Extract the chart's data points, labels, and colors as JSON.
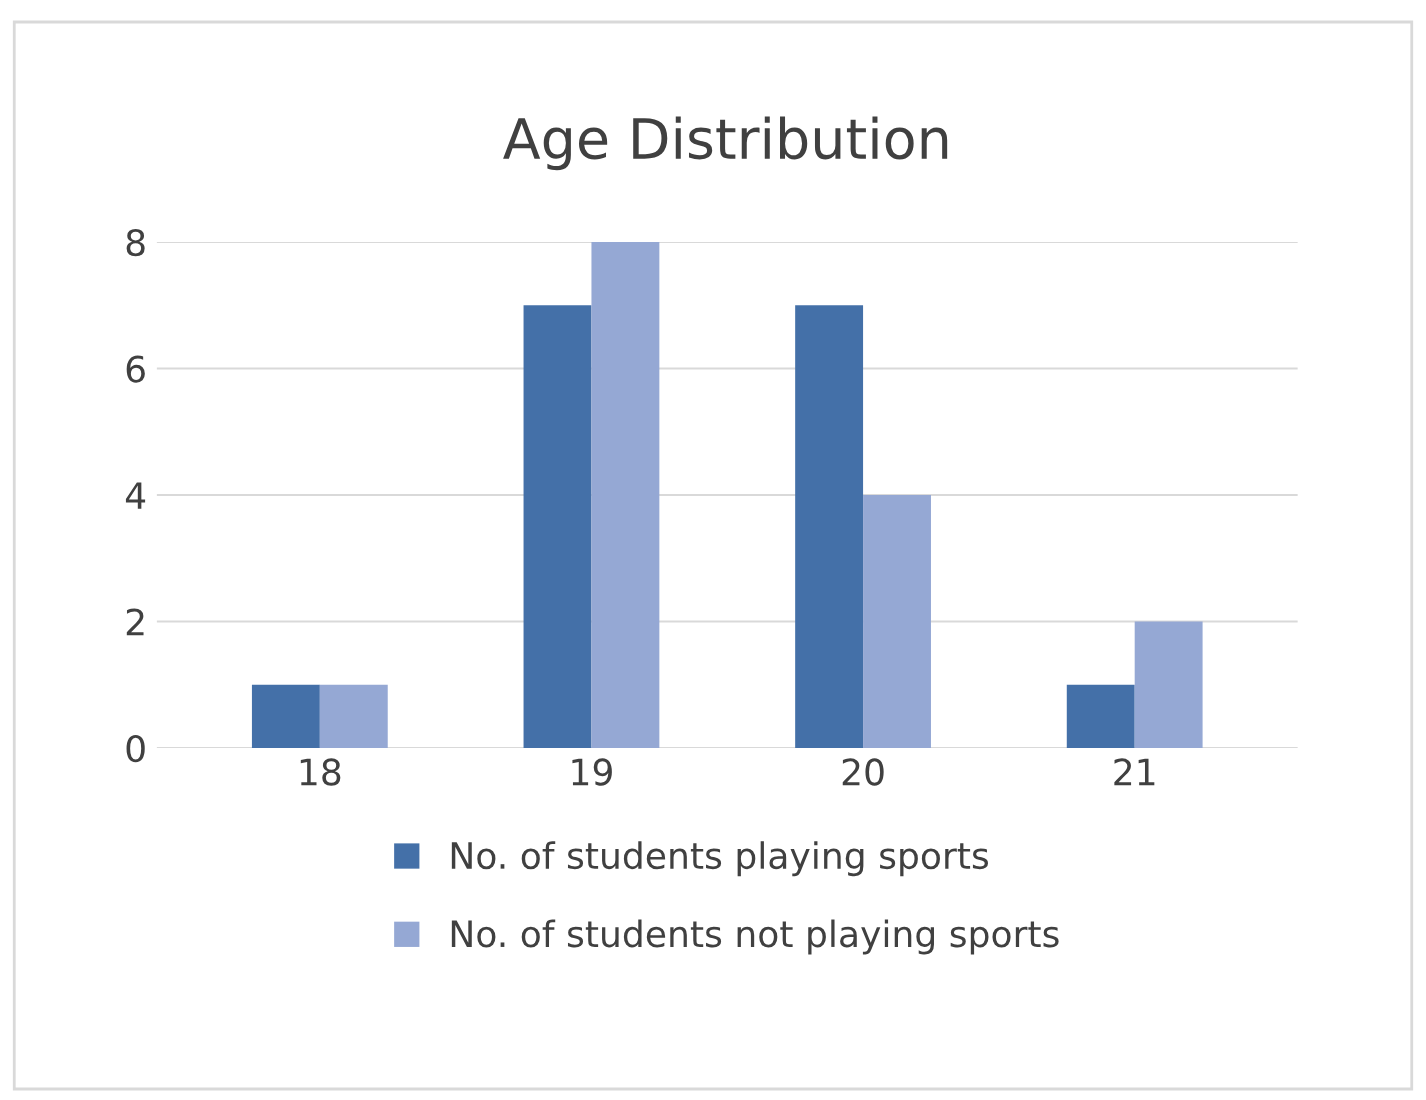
{
  "chart_data": {
    "type": "bar",
    "title": "Age Distribution",
    "categories": [
      "18",
      "19",
      "20",
      "21"
    ],
    "series": [
      {
        "name": "No. of students playing sports",
        "color": "#4470a8",
        "values": [
          1,
          7,
          7,
          1
        ]
      },
      {
        "name": "No. of students not playing sports",
        "color": "#95a8d4",
        "values": [
          1,
          8,
          4,
          2
        ]
      }
    ],
    "ylim": [
      0,
      8
    ],
    "yticks": [
      0,
      2,
      4,
      6,
      8
    ],
    "grid": "y",
    "legend": "bottom"
  }
}
